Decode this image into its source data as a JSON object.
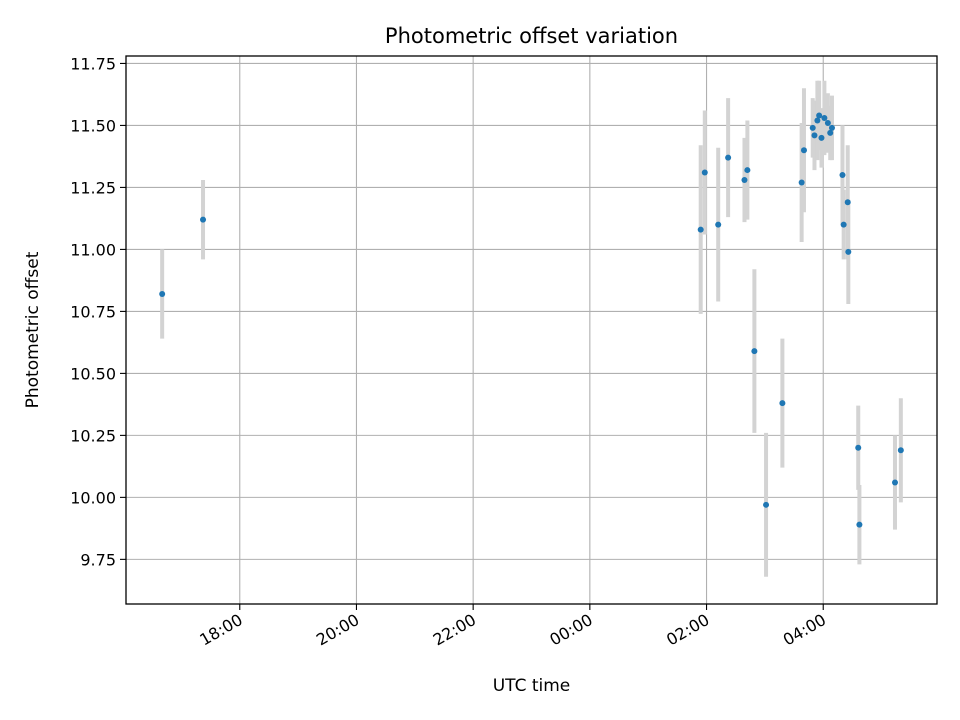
{
  "chart_data": {
    "type": "scatter",
    "title": "Photometric offset variation",
    "xlabel": "UTC time",
    "ylabel": "Photometric offset",
    "x_unit": "hours since 00:00",
    "xlim": [
      -7.95,
      5.95
    ],
    "ylim": [
      9.57,
      11.78
    ],
    "x_ticks": [
      {
        "value": -6,
        "label": "18:00"
      },
      {
        "value": -4,
        "label": "20:00"
      },
      {
        "value": -2,
        "label": "22:00"
      },
      {
        "value": 0,
        "label": "00:00"
      },
      {
        "value": 2,
        "label": "02:00"
      },
      {
        "value": 4,
        "label": "04:00"
      }
    ],
    "y_ticks": [
      {
        "value": 9.75,
        "label": "9.75"
      },
      {
        "value": 10.0,
        "label": "10.00"
      },
      {
        "value": 10.25,
        "label": "10.25"
      },
      {
        "value": 10.5,
        "label": "10.50"
      },
      {
        "value": 10.75,
        "label": "10.75"
      },
      {
        "value": 11.0,
        "label": "11.00"
      },
      {
        "value": 11.25,
        "label": "11.25"
      },
      {
        "value": 11.5,
        "label": "11.50"
      },
      {
        "value": 11.75,
        "label": "11.75"
      }
    ],
    "grid": true,
    "colors": {
      "marker": "#1f77b4",
      "errorbar": "#d3d3d3",
      "grid": "#b0b0b0",
      "axes": "#000000"
    },
    "points": [
      {
        "x": -7.33,
        "y": 10.82,
        "err": 0.18
      },
      {
        "x": -6.63,
        "y": 11.12,
        "err": 0.16
      },
      {
        "x": 1.9,
        "y": 11.08,
        "err": 0.34
      },
      {
        "x": 1.97,
        "y": 11.31,
        "err": 0.25
      },
      {
        "x": 2.2,
        "y": 11.1,
        "err": 0.31
      },
      {
        "x": 2.37,
        "y": 11.37,
        "err": 0.24
      },
      {
        "x": 2.65,
        "y": 11.28,
        "err": 0.17
      },
      {
        "x": 2.7,
        "y": 11.32,
        "err": 0.2
      },
      {
        "x": 2.82,
        "y": 10.59,
        "err": 0.33
      },
      {
        "x": 3.02,
        "y": 9.97,
        "err": 0.29
      },
      {
        "x": 3.3,
        "y": 10.38,
        "err": 0.26
      },
      {
        "x": 3.63,
        "y": 11.27,
        "err": 0.24
      },
      {
        "x": 3.67,
        "y": 11.4,
        "err": 0.25
      },
      {
        "x": 3.82,
        "y": 11.49,
        "err": 0.12
      },
      {
        "x": 3.85,
        "y": 11.46,
        "err": 0.14
      },
      {
        "x": 3.9,
        "y": 11.52,
        "err": 0.16
      },
      {
        "x": 3.93,
        "y": 11.54,
        "err": 0.14
      },
      {
        "x": 3.97,
        "y": 11.45,
        "err": 0.12
      },
      {
        "x": 4.02,
        "y": 11.53,
        "err": 0.15
      },
      {
        "x": 4.08,
        "y": 11.51,
        "err": 0.12
      },
      {
        "x": 4.12,
        "y": 11.47,
        "err": 0.11
      },
      {
        "x": 4.15,
        "y": 11.49,
        "err": 0.13
      },
      {
        "x": 4.33,
        "y": 11.3,
        "err": 0.2
      },
      {
        "x": 4.35,
        "y": 11.1,
        "err": 0.14
      },
      {
        "x": 4.42,
        "y": 11.19,
        "err": 0.23
      },
      {
        "x": 4.43,
        "y": 10.99,
        "err": 0.21
      },
      {
        "x": 4.6,
        "y": 10.2,
        "err": 0.17
      },
      {
        "x": 4.62,
        "y": 9.89,
        "err": 0.16
      },
      {
        "x": 5.23,
        "y": 10.06,
        "err": 0.19
      },
      {
        "x": 5.33,
        "y": 10.19,
        "err": 0.21
      }
    ]
  }
}
